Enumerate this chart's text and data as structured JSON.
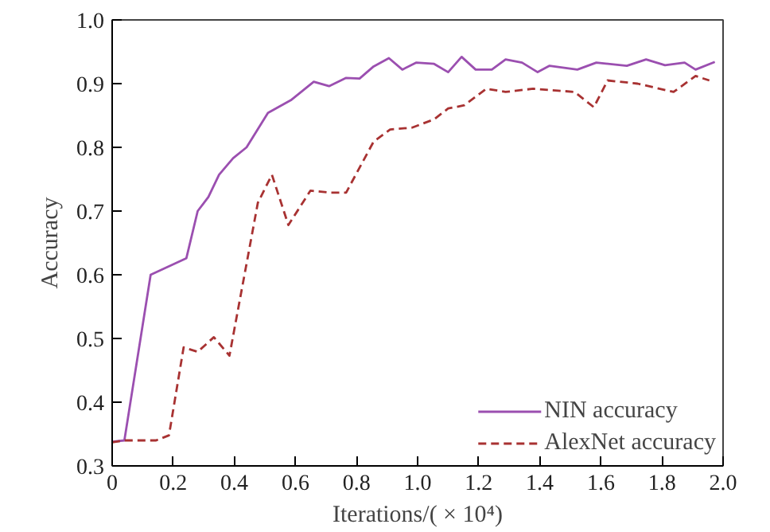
{
  "chart_data": {
    "type": "line",
    "xlabel": "Iterations/( × 10⁴)",
    "ylabel": "Accuracy",
    "xlim": [
      0,
      2.0
    ],
    "ylim": [
      0.3,
      1.0
    ],
    "xticks": [
      0,
      {
        "value": 0.2,
        "label": "0.2"
      },
      {
        "value": 0.4,
        "label": "0.4"
      },
      {
        "value": 0.6,
        "label": "0.6"
      },
      {
        "value": 0.8,
        "label": "0.8"
      },
      {
        "value": 1.0,
        "label": "1.0"
      },
      {
        "value": 1.2,
        "label": "1.2"
      },
      {
        "value": 1.4,
        "label": "1.4"
      },
      {
        "value": 1.6,
        "label": "1.6"
      },
      {
        "value": 1.8,
        "label": "1.8"
      },
      {
        "value": 2.0,
        "label": "2.0"
      }
    ],
    "yticks": [
      0.3,
      0.4,
      0.5,
      0.6,
      0.7,
      0.8,
      0.9,
      {
        "value": 1.0,
        "label": "1.0"
      }
    ],
    "grid": false,
    "legend": "bottom right",
    "series": [
      {
        "name": "NIN accuracy",
        "color": "#9b4fb0",
        "line_style": "solid",
        "x": [
          0,
          0.04,
          0.126,
          0.243,
          0.28,
          0.315,
          0.35,
          0.396,
          0.44,
          0.51,
          0.585,
          0.66,
          0.71,
          0.766,
          0.81,
          0.856,
          0.906,
          0.95,
          0.996,
          1.054,
          1.1,
          1.144,
          1.19,
          1.243,
          1.288,
          1.342,
          1.393,
          1.432,
          1.523,
          1.585,
          1.685,
          1.748,
          1.81,
          1.874,
          1.91,
          1.973
        ],
        "values": [
          0.338,
          0.34,
          0.6,
          0.626,
          0.7,
          0.722,
          0.757,
          0.783,
          0.8,
          0.854,
          0.874,
          0.903,
          0.896,
          0.909,
          0.908,
          0.927,
          0.94,
          0.922,
          0.933,
          0.931,
          0.918,
          0.942,
          0.922,
          0.922,
          0.938,
          0.933,
          0.918,
          0.928,
          0.922,
          0.933,
          0.928,
          0.938,
          0.929,
          0.933,
          0.922,
          0.934
        ]
      },
      {
        "name": "AlexNet accuracy",
        "color": "#a83232",
        "line_style": "dashed",
        "x": [
          0,
          0.04,
          0.144,
          0.186,
          0.234,
          0.28,
          0.333,
          0.384,
          0.477,
          0.523,
          0.577,
          0.649,
          0.712,
          0.766,
          0.856,
          0.91,
          0.982,
          1.054,
          1.1,
          1.153,
          1.225,
          1.288,
          1.378,
          1.46,
          1.514,
          1.577,
          1.622,
          1.72,
          1.838,
          1.91,
          1.955
        ],
        "values": [
          0.337,
          0.34,
          0.34,
          0.348,
          0.486,
          0.479,
          0.502,
          0.473,
          0.713,
          0.757,
          0.678,
          0.732,
          0.729,
          0.729,
          0.809,
          0.828,
          0.831,
          0.844,
          0.861,
          0.866,
          0.892,
          0.887,
          0.892,
          0.889,
          0.887,
          0.863,
          0.905,
          0.9,
          0.887,
          0.912,
          0.905
        ]
      }
    ]
  }
}
